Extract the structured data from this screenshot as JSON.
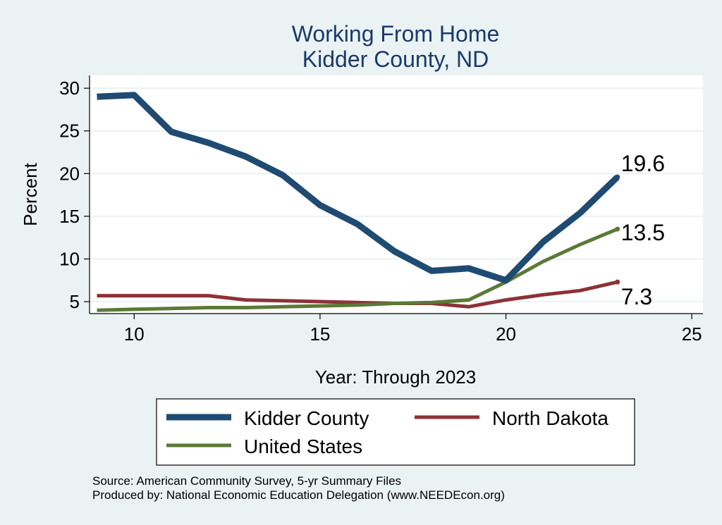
{
  "chart_data": {
    "type": "line",
    "title": [
      "Working From Home",
      "Kidder County, ND"
    ],
    "xlabel": "Year: Through 2023",
    "ylabel": "Percent",
    "xlim": [
      8.8,
      25.3
    ],
    "ylim": [
      3.6,
      31.5
    ],
    "x_ticks": [
      10,
      15,
      20,
      25
    ],
    "y_ticks": [
      5,
      10,
      15,
      20,
      25,
      30
    ],
    "grid": true,
    "legend_placement": "bottom",
    "series": [
      {
        "name": "Kidder County",
        "color": "#1f4b72",
        "width": 9,
        "x": [
          9,
          10,
          11,
          12,
          13,
          14,
          15,
          16,
          17,
          18,
          19,
          20,
          21,
          22,
          23
        ],
        "y": [
          29.0,
          29.2,
          24.9,
          23.6,
          22.0,
          19.8,
          16.3,
          14.1,
          10.9,
          8.6,
          8.9,
          7.5,
          12.0,
          15.4,
          19.6
        ]
      },
      {
        "name": "North Dakota",
        "color": "#8c3236",
        "width": 5,
        "x": [
          9,
          10,
          11,
          12,
          13,
          14,
          15,
          16,
          17,
          18,
          19,
          20,
          21,
          22,
          23
        ],
        "y": [
          5.7,
          5.7,
          5.7,
          5.7,
          5.2,
          5.1,
          5.0,
          4.9,
          4.8,
          4.8,
          4.4,
          5.2,
          5.8,
          6.3,
          7.3
        ]
      },
      {
        "name": "United States",
        "color": "#5a7a36",
        "width": 5,
        "x": [
          9,
          10,
          11,
          12,
          13,
          14,
          15,
          16,
          17,
          18,
          19,
          20,
          21,
          22,
          23
        ],
        "y": [
          4.0,
          4.1,
          4.2,
          4.3,
          4.3,
          4.4,
          4.5,
          4.6,
          4.8,
          4.9,
          5.2,
          7.3,
          9.7,
          11.7,
          13.5
        ]
      }
    ],
    "end_labels": [
      {
        "series": "Kidder County",
        "text": "19.6"
      },
      {
        "series": "United States",
        "text": "13.5"
      },
      {
        "series": "North Dakota",
        "text": "7.3"
      }
    ]
  },
  "legend": {
    "items": [
      "Kidder County",
      "North Dakota",
      "United States"
    ]
  },
  "notes": {
    "source": "Source: American Community Survey, 5-yr Summary Files",
    "produced": "Produced by: National Economic Education Delegation (www.NEEDEcon.org)"
  }
}
